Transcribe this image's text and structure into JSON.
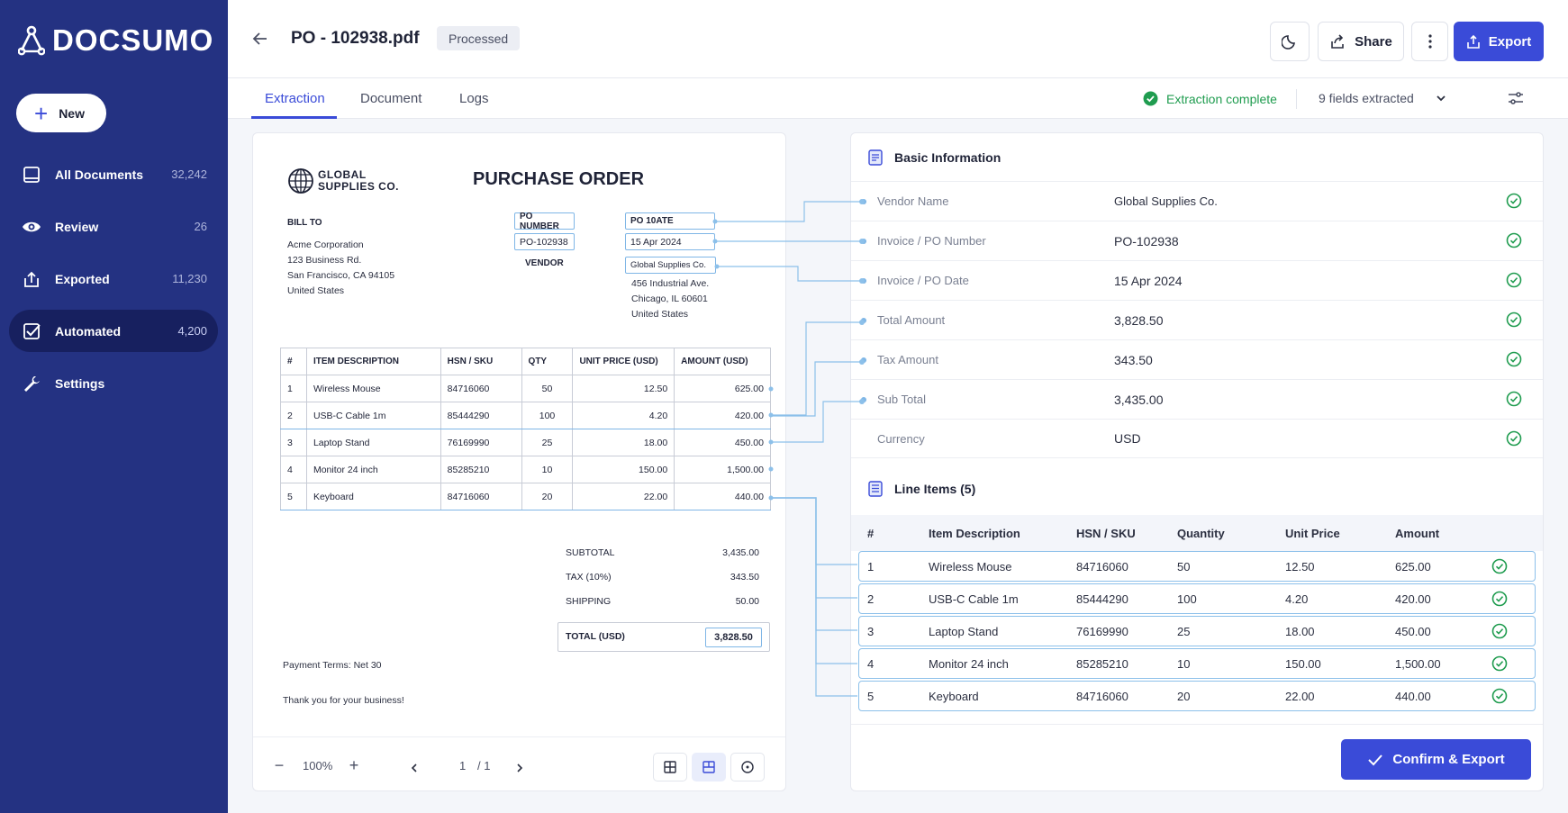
{
  "brand": {
    "name": "DOCSUMO"
  },
  "sidebar": {
    "new_label": "New",
    "items": [
      {
        "label": "All Documents",
        "count": "32,242",
        "icon": "documents-icon"
      },
      {
        "label": "Review",
        "count": "26",
        "icon": "eye-icon"
      },
      {
        "label": "Exported",
        "count": "11,230",
        "icon": "upload-icon"
      },
      {
        "label": "Automated",
        "count": "4,200",
        "icon": "checkbox-icon",
        "active": true
      },
      {
        "label": "Settings",
        "count": "",
        "icon": "wrench-icon"
      }
    ]
  },
  "header": {
    "title": "PO - 102938.pdf",
    "status": "Processed",
    "share_label": "Share",
    "export_label": "Export"
  },
  "tabs": {
    "items": [
      "Extraction",
      "Document",
      "Logs"
    ],
    "active": "Extraction",
    "extraction_status": "Extraction complete",
    "fields_extracted": "9 fields extracted"
  },
  "document": {
    "company_line1": "GLOBAL",
    "company_line2": "SUPPLIES CO.",
    "heading": "PURCHASE ORDER",
    "bill_to_label": "BILL TO",
    "bill_to": [
      "Acme Corporation",
      "123 Business Rd.",
      "San Francisco, CA 94105",
      "United States"
    ],
    "po_number_label": "PO NUMBER",
    "po_number": "PO-102938",
    "po_date_label": "PO 10ATE",
    "po_date": "15 Apr 2024",
    "vendor_label": "VENDOR",
    "vendor_name": "Global Supplies Co.",
    "vendor_address": [
      "456 Industrial Ave.",
      "Chicago, IL 60601",
      "United States"
    ],
    "table_headers": [
      "#",
      "ITEM DESCRIPTION",
      "HSN / SKU",
      "QTY",
      "UNIT PRICE (USD)",
      "AMOUNT (USD)"
    ],
    "rows": [
      [
        "1",
        "Wireless Mouse",
        "84716060",
        "50",
        "12.50",
        "625.00"
      ],
      [
        "2",
        "USB-C Cable 1m",
        "85444290",
        "100",
        "4.20",
        "420.00"
      ],
      [
        "3",
        "Laptop Stand",
        "76169990",
        "25",
        "18.00",
        "450.00"
      ],
      [
        "4",
        "Monitor 24 inch",
        "85285210",
        "10",
        "150.00",
        "1,500.00"
      ],
      [
        "5",
        "Keyboard",
        "84716060",
        "20",
        "22.00",
        "440.00"
      ]
    ],
    "subtotal_label": "SUBTOTAL",
    "subtotal": "3,435.00",
    "tax_label": "TAX (10%)",
    "tax": "343.50",
    "shipping_label": "SHIPPING",
    "shipping": "50.00",
    "total_label": "TOTAL (USD)",
    "total": "3,828.50",
    "payment_terms": "Payment Terms: Net 30",
    "thanks": "Thank you for your business!",
    "zoom": "100%",
    "page_current": "1",
    "page_total": "/ 1"
  },
  "basic_info": {
    "title": "Basic Information",
    "fields": [
      {
        "label": "Vendor Name",
        "value": "Global Supplies Co."
      },
      {
        "label": "Invoice / PO Number",
        "value": "PO-102938"
      },
      {
        "label": "Invoice / PO Date",
        "value": "15 Apr 2024"
      },
      {
        "label": "Total Amount",
        "value": "3,828.50"
      },
      {
        "label": "Tax Amount",
        "value": "343.50"
      },
      {
        "label": "Sub Total",
        "value": "3,435.00"
      },
      {
        "label": "Currency",
        "value": "USD"
      }
    ]
  },
  "line_items": {
    "title": "Line Items (5)",
    "headers": [
      "#",
      "Item Description",
      "HSN / SKU",
      "Quantity",
      "Unit Price",
      "Amount"
    ],
    "rows": [
      [
        "1",
        "Wireless Mouse",
        "84716060",
        "50",
        "12.50",
        "625.00"
      ],
      [
        "2",
        "USB-C Cable 1m",
        "85444290",
        "100",
        "4.20",
        "420.00"
      ],
      [
        "3",
        "Laptop Stand",
        "76169990",
        "25",
        "18.00",
        "450.00"
      ],
      [
        "4",
        "Monitor 24 inch",
        "85285210",
        "10",
        "150.00",
        "1,500.00"
      ],
      [
        "5",
        "Keyboard",
        "84716060",
        "20",
        "22.00",
        "440.00"
      ]
    ]
  },
  "confirm_label": "Confirm & Export",
  "colors": {
    "sidebar": "#243282",
    "sidebar_active": "#17205f",
    "accent": "#3a4bd8",
    "success": "#1f9c4f",
    "highlight": "#7fb6e6"
  }
}
